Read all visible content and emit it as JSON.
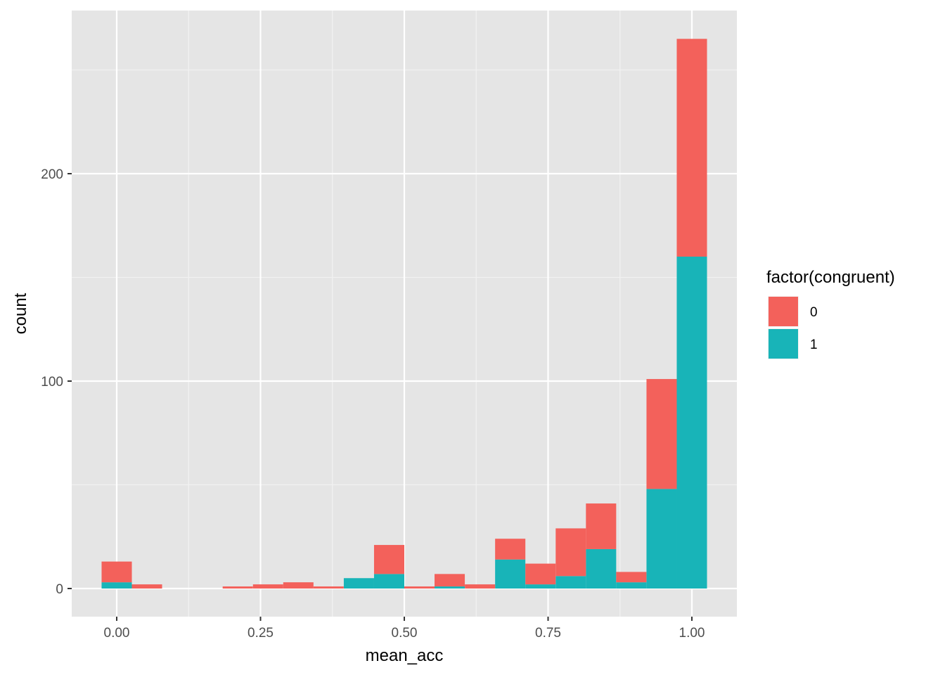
{
  "chart_data": {
    "type": "bar",
    "subtype": "stacked-histogram",
    "xlabel": "mean_acc",
    "ylabel": "count",
    "x_ticks": [
      "0.00",
      "0.25",
      "0.50",
      "0.75",
      "1.00"
    ],
    "x_tick_values": [
      0,
      0.25,
      0.5,
      0.75,
      1.0
    ],
    "y_ticks": [
      "0",
      "100",
      "200"
    ],
    "y_tick_values": [
      0,
      100,
      200
    ],
    "xlim": [
      -0.04,
      1.04
    ],
    "ylim": [
      -13,
      278
    ],
    "bin_width": 0.0526,
    "bin_centers": [
      0.0,
      0.0526,
      0.1053,
      0.1579,
      0.2105,
      0.2632,
      0.3158,
      0.3684,
      0.4211,
      0.4737,
      0.5263,
      0.5789,
      0.6316,
      0.6842,
      0.7368,
      0.7895,
      0.8421,
      0.8947,
      0.9474,
      1.0
    ],
    "grid": true,
    "legend_position": "right",
    "legend_title": "factor(congruent)",
    "series": [
      {
        "name": "1",
        "color": "#18b4b8",
        "values": [
          3,
          0,
          0,
          0,
          0,
          0,
          0,
          0,
          5,
          7,
          0,
          1,
          0,
          14,
          2,
          6,
          19,
          3,
          48,
          160
        ]
      },
      {
        "name": "0",
        "color": "#f3615b",
        "values": [
          10,
          2,
          0,
          0,
          1,
          2,
          3,
          1,
          0,
          14,
          1,
          6,
          2,
          10,
          10,
          23,
          22,
          5,
          53,
          105
        ]
      }
    ],
    "legend_order": [
      "0",
      "1"
    ]
  }
}
